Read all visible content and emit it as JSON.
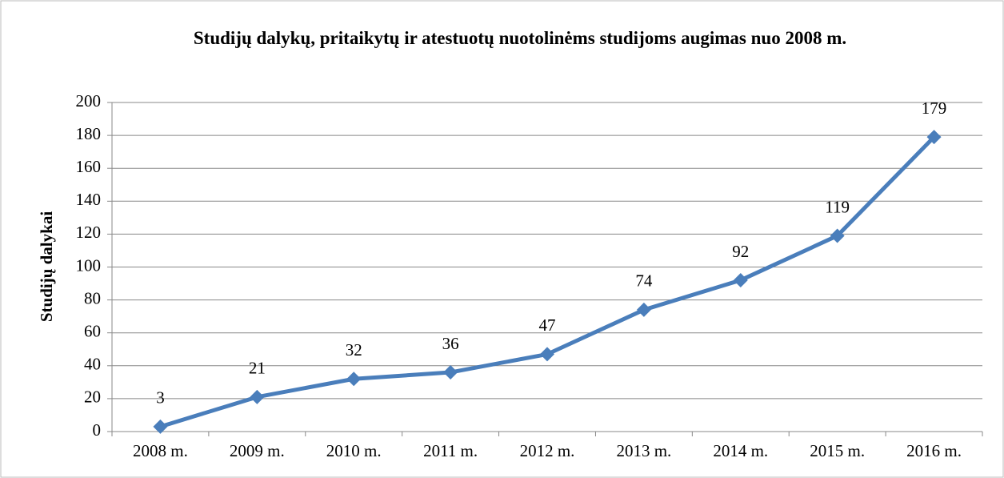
{
  "chart_data": {
    "type": "line",
    "title": "Studijų dalykų, pritaikytų ir atestuotų nuotolinėms studijoms augimas nuo 2008 m.",
    "ylabel": "Studijų dalykai",
    "categories": [
      "2008 m.",
      "2009 m.",
      "2010 m.",
      "2011 m.",
      "2012 m.",
      "2013 m.",
      "2014 m.",
      "2015 m.",
      "2016 m."
    ],
    "values": [
      3,
      21,
      32,
      36,
      47,
      74,
      92,
      119,
      179
    ],
    "color": "#4a7ebb",
    "ylim": [
      0,
      200
    ],
    "yticks": [
      0,
      20,
      40,
      60,
      80,
      100,
      120,
      140,
      160,
      180,
      200
    ],
    "grid": true
  }
}
